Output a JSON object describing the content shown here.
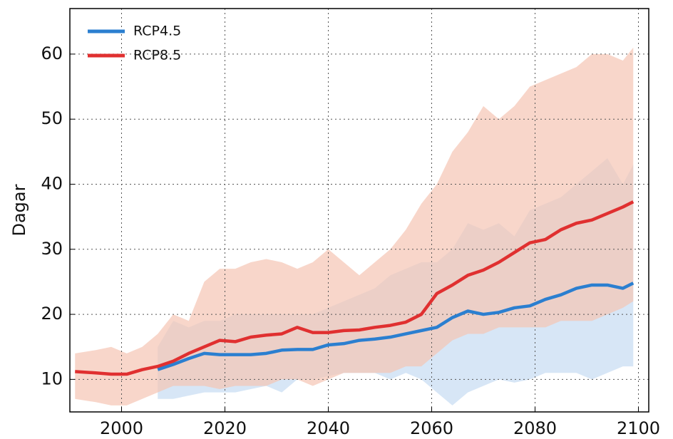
{
  "chart_data": {
    "type": "line",
    "y_label": "Dagar",
    "x": [
      1991,
      1995,
      1998,
      2001,
      2004,
      2007,
      2010,
      2013,
      2016,
      2019,
      2022,
      2025,
      2028,
      2031,
      2034,
      2037,
      2040,
      2043,
      2046,
      2049,
      2052,
      2055,
      2058,
      2061,
      2064,
      2067,
      2070,
      2073,
      2076,
      2079,
      2082,
      2085,
      2088,
      2091,
      2094,
      2097,
      2099
    ],
    "series": [
      {
        "name": "RCP4.5",
        "color": "#2b7fd0",
        "band_color": "#c6dcf2",
        "values": [
          null,
          null,
          null,
          null,
          null,
          11.5,
          12.3,
          13.2,
          14,
          13.8,
          13.8,
          13.8,
          14,
          14.5,
          14.6,
          14.6,
          15.3,
          15.5,
          16,
          16.2,
          16.5,
          17,
          17.5,
          18,
          19.5,
          20.5,
          20,
          20.3,
          21,
          21.3,
          22.3,
          23,
          24,
          24.5,
          24.5,
          24,
          24.8
        ],
        "low": [
          null,
          null,
          null,
          null,
          null,
          7,
          7,
          7.5,
          8,
          8,
          8,
          8.5,
          9,
          8,
          10,
          10,
          10.5,
          11,
          11,
          11,
          10,
          11,
          10,
          8,
          6,
          8,
          9,
          10,
          9.5,
          10,
          11,
          11,
          11,
          10,
          11,
          12,
          12
        ],
        "high": [
          null,
          null,
          null,
          null,
          null,
          15,
          19,
          18,
          19,
          19,
          20,
          20,
          20,
          20,
          20,
          20,
          21,
          22,
          23,
          24,
          26,
          27,
          28,
          28,
          30,
          34,
          33,
          34,
          32,
          36,
          37,
          38,
          40,
          42,
          44,
          40,
          43
        ]
      },
      {
        "name": "RCP8.5",
        "color": "#e03030",
        "band_color": "#f5c4b4",
        "values": [
          11.2,
          11,
          10.8,
          10.8,
          11.5,
          12,
          12.8,
          14,
          15,
          16,
          15.8,
          16.5,
          16.8,
          17,
          18,
          17.2,
          17.2,
          17.5,
          17.6,
          18,
          18.3,
          18.8,
          20,
          23.2,
          24.5,
          26,
          26.8,
          28,
          29.5,
          31,
          31.5,
          33,
          34,
          34.5,
          35.5,
          36.5,
          37.3
        ],
        "low": [
          7,
          6.5,
          6,
          6,
          7,
          8,
          9,
          9,
          9,
          8.5,
          9,
          9,
          9,
          10,
          10,
          9,
          10,
          11,
          11,
          11,
          11,
          12,
          12,
          14,
          16,
          17,
          17,
          18,
          18,
          18,
          18,
          19,
          19,
          19,
          20,
          21,
          22
        ],
        "high": [
          14,
          14.5,
          15,
          14,
          15,
          17,
          20,
          19,
          25,
          27,
          27,
          28,
          28.5,
          28,
          27,
          28,
          30,
          28,
          26,
          28,
          30,
          33,
          37,
          40,
          45,
          48,
          52,
          50,
          52,
          55,
          56,
          57,
          58,
          60,
          60,
          59,
          61
        ]
      }
    ],
    "xlim": [
      1990,
      2102
    ],
    "xticks": [
      2000,
      2020,
      2040,
      2060,
      2080,
      2100
    ],
    "ylim": [
      5,
      67
    ],
    "yticks": [
      10,
      20,
      30,
      40,
      50,
      60
    ],
    "grid": true,
    "legend": "upper left"
  }
}
